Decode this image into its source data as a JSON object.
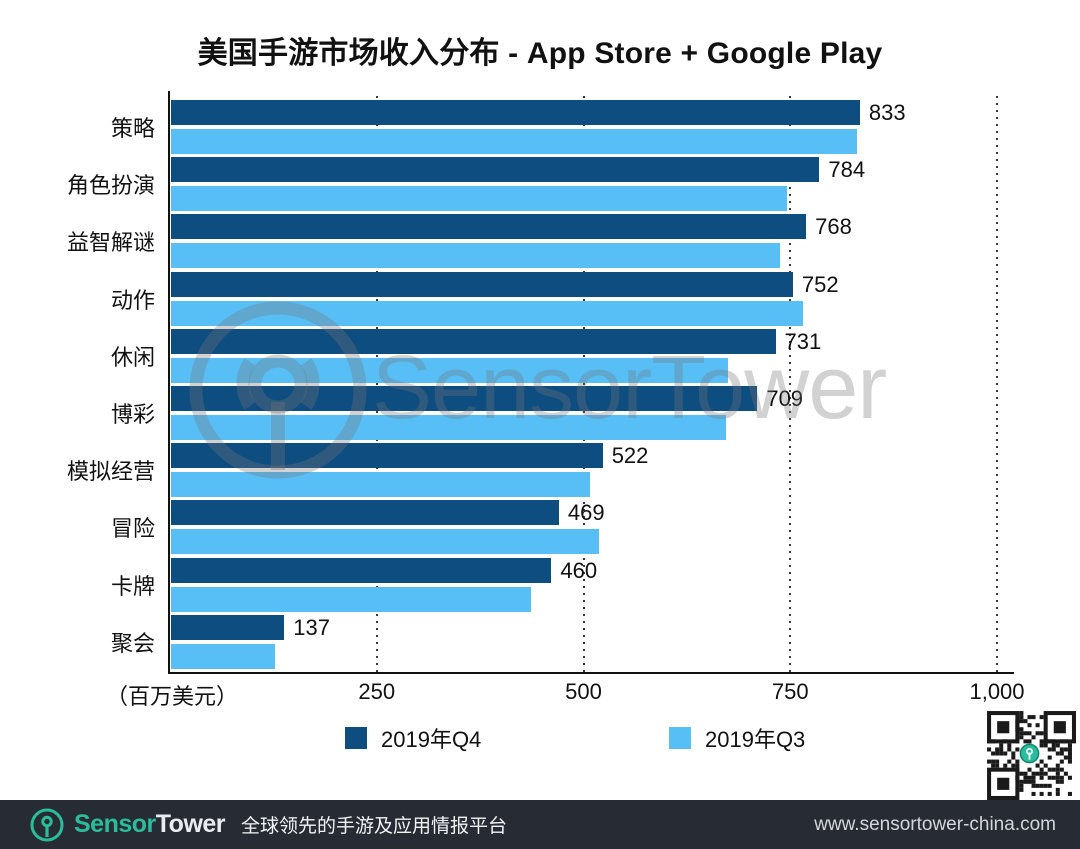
{
  "title": "美国手游市场收入分布 - App Store + Google Play",
  "chart_data": {
    "type": "bar",
    "orientation": "horizontal",
    "title": "美国手游市场收入分布 - App Store + Google Play",
    "categories": [
      "策略",
      "角色扮演",
      "益智解谜",
      "动作",
      "休闲",
      "博彩",
      "模拟经营",
      "冒险",
      "卡牌",
      "聚会"
    ],
    "series": [
      {
        "name": "2019年Q4",
        "color": "#0e4d80",
        "values": [
          833,
          784,
          768,
          752,
          731,
          709,
          522,
          469,
          460,
          137
        ],
        "data_labels_shown": true
      },
      {
        "name": "2019年Q3",
        "color": "#57bef6",
        "values": [
          829,
          745,
          737,
          764,
          673,
          671,
          507,
          517,
          435,
          126
        ],
        "data_labels_shown": false,
        "values_estimated_from_bar_lengths": true
      }
    ],
    "xlabel": "（百万美元）",
    "xlim": [
      0,
      1000
    ],
    "xticks": [
      {
        "value": 250,
        "label": "250"
      },
      {
        "value": 500,
        "label": "500"
      },
      {
        "value": 750,
        "label": "750"
      },
      {
        "value": 1000,
        "label": "1,000"
      }
    ],
    "grid": "dotted-vertical",
    "legend_position": "bottom"
  },
  "watermark": {
    "text": "SensorTower"
  },
  "qr_code": {
    "description": "qr-code-with-sensortower-logo",
    "accent_color": "#2bbd9b"
  },
  "footer": {
    "brand_sensor": "Sensor",
    "brand_tower": "Tower",
    "tagline": "全球领先的手游及应用情报平台",
    "url": "www.sensortower-china.com",
    "accent_color": "#2bbd9b",
    "background_color": "#272c34"
  }
}
